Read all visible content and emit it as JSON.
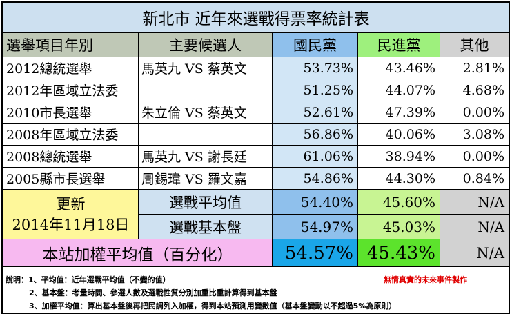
{
  "title": "新北市 近年來選戰得票率統計表",
  "headers": {
    "item": "選舉項目年別",
    "candidates": "主要候選人",
    "kmt": "國民黨",
    "dpp": "民進黨",
    "other": "其他"
  },
  "rows": [
    {
      "item": "2012總統選舉",
      "candidates": "馬英九 VS 蔡英文",
      "kmt": "53.73%",
      "dpp": "43.46%",
      "other": "2.81%"
    },
    {
      "item": "2012年區域立法委",
      "candidates": "",
      "kmt": "51.25%",
      "dpp": "44.07%",
      "other": "4.68%"
    },
    {
      "item": "2010市長選舉",
      "candidates": "朱立倫 VS 蔡英文",
      "kmt": "52.61%",
      "dpp": "47.39%",
      "other": "0.00%"
    },
    {
      "item": "2008年區域立法委",
      "candidates": "",
      "kmt": "56.86%",
      "dpp": "40.06%",
      "other": "3.08%"
    },
    {
      "item": "2008總統選舉",
      "candidates": "馬英九 VS 謝長廷",
      "kmt": "61.06%",
      "dpp": "38.94%",
      "other": "0.00%"
    },
    {
      "item": "2005縣市長選舉",
      "candidates": "周錫瑋 VS 羅文嘉",
      "kmt": "54.86%",
      "dpp": "44.30%",
      "other": "0.84%"
    }
  ],
  "update": {
    "label": "更新",
    "date": "2014年11月18日"
  },
  "summary": [
    {
      "label": "選戰平均值",
      "kmt": "54.40%",
      "dpp": "45.60%",
      "other": "N/A"
    },
    {
      "label": "選戰基本盤",
      "kmt": "54.97%",
      "dpp": "45.03%",
      "other": "N/A"
    }
  ],
  "weighted": {
    "label": "本站加權平均值（百分化）",
    "kmt": "54.57%",
    "dpp": "45.43%",
    "other": "N/A"
  },
  "notes": {
    "line1": "說明：1、平均值：近年選戰平均值（不變的值）",
    "line2": "2、基本盤：考量時間、參選人數及選戰性質分別加重比重計算得到基本盤",
    "line3": "3、加權平均值：算出基本盤後再把民調列入加權，得到本站預測用變數值（基本盤變動以不超過5%為原則）",
    "credit": "無情真實的未來事件製作"
  },
  "colors": {
    "kmt_header": "#8fc0ec",
    "dpp_header": "#9ef07d",
    "kmt_weighted": "#1aa6e8",
    "dpp_weighted": "#5ce32c",
    "weighted_label": "#f7b9f0",
    "update_cell": "#fef79a",
    "credit_text": "#e00000"
  }
}
